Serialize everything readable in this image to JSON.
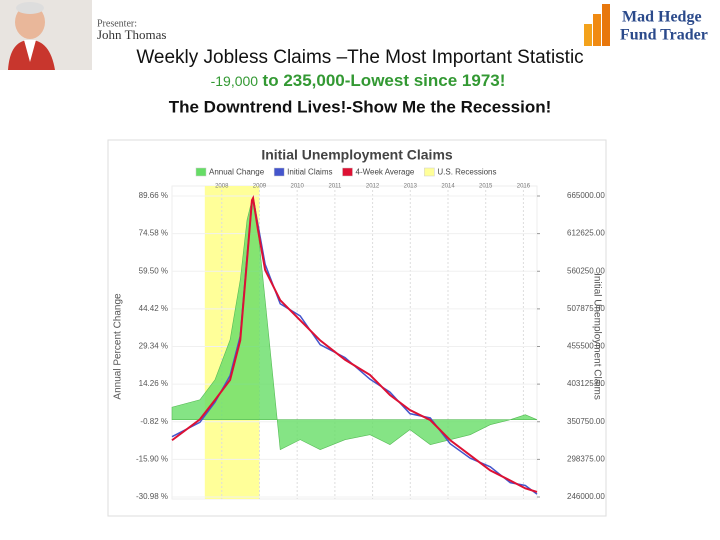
{
  "header": {
    "presenter_label": "Presenter:",
    "presenter_name": "John Thomas",
    "logo_line1": "Mad Hedge",
    "logo_line2": "Fund Trader"
  },
  "slide": {
    "title": "Weekly Jobless Claims –The Most Important Statistic",
    "subtitle_part1": "-19,000",
    "subtitle_part2": "to 235,000-Lowest since 1973!",
    "subtitle_line2": "The Downtrend Lives!-Show Me the Recession!"
  },
  "chart_data": {
    "type": "line",
    "title": "Initial Unemployment Claims",
    "y_label": "Annual Percent Change",
    "y2_label": "Initial Unemployment Claims",
    "x": [
      2006.68,
      2007.42,
      2007.82,
      2008.22,
      2008.49,
      2008.67,
      2008.8,
      2008.83,
      2008.96,
      2009.15,
      2009.55,
      2010.08,
      2010.61,
      2011.27,
      2011.93,
      2012.46,
      2012.99,
      2013.53,
      2014.06,
      2014.59,
      2015.12,
      2015.65,
      2016.05,
      2016.36
    ],
    "xlim": [
      2006.68,
      2016.36
    ],
    "xticks": [
      2008,
      2009,
      2010,
      2011,
      2012,
      2013,
      2014,
      2015,
      2016
    ],
    "ylim": [
      -30.98,
      89.66
    ],
    "yticks": [
      {
        "value": 89.66,
        "label": "89.66 %"
      },
      {
        "value": 74.58,
        "label": "74.58 %"
      },
      {
        "value": 59.5,
        "label": "59.50 %"
      },
      {
        "value": 44.42,
        "label": "44.42 %"
      },
      {
        "value": 29.34,
        "label": "29.34 %"
      },
      {
        "value": 14.26,
        "label": "14.26 %"
      },
      {
        "value": -0.82,
        "label": "-0.82 %"
      },
      {
        "value": -15.9,
        "label": "-15.90 %"
      },
      {
        "value": -30.98,
        "label": "-30.98 %"
      }
    ],
    "y2lim": [
      246000,
      665000
    ],
    "y2ticks": [
      {
        "value": 665000,
        "label": "665000.00"
      },
      {
        "value": 612625,
        "label": "612625.00"
      },
      {
        "value": 560250,
        "label": "560250.00"
      },
      {
        "value": 507875,
        "label": "507875.00"
      },
      {
        "value": 455500,
        "label": "455500.00"
      },
      {
        "value": 403125,
        "label": "403125.00"
      },
      {
        "value": 350750,
        "label": "350750.00"
      },
      {
        "value": 298375,
        "label": "298375.00"
      },
      {
        "value": 246000,
        "label": "246000.00"
      }
    ],
    "recessions": {
      "name": "U.S. Recessions",
      "color": "#ffff99",
      "ranges": [
        [
          2007.55,
          2009.0
        ]
      ]
    },
    "series": [
      {
        "name": "Annual Change",
        "color": "#66dd66",
        "style": "area",
        "values": [
          5,
          8,
          16,
          32,
          56,
          80,
          88,
          87,
          76,
          48,
          -12,
          -8,
          -12,
          -8,
          -6,
          -10,
          -4,
          -10,
          -8,
          -6,
          -2,
          0,
          2,
          0
        ]
      },
      {
        "name": "Initial Claims",
        "color": "#4455cc",
        "axis": "y2",
        "values": [
          330000,
          350000,
          378000,
          415000,
          470000,
          580000,
          655000,
          662000,
          625000,
          570000,
          515000,
          498000,
          458000,
          440000,
          410000,
          392000,
          362000,
          356000,
          320000,
          300000,
          288000,
          266000,
          262000,
          250000
        ]
      },
      {
        "name": "4-Week Average",
        "color": "#dd1133",
        "axis": "y2",
        "values": [
          325000,
          354000,
          381000,
          409000,
          464000,
          576000,
          659000,
          662000,
          618000,
          562000,
          520000,
          492000,
          464000,
          437000,
          416000,
          388000,
          367000,
          353000,
          325000,
          304000,
          283000,
          269000,
          258000,
          253000
        ]
      }
    ]
  }
}
